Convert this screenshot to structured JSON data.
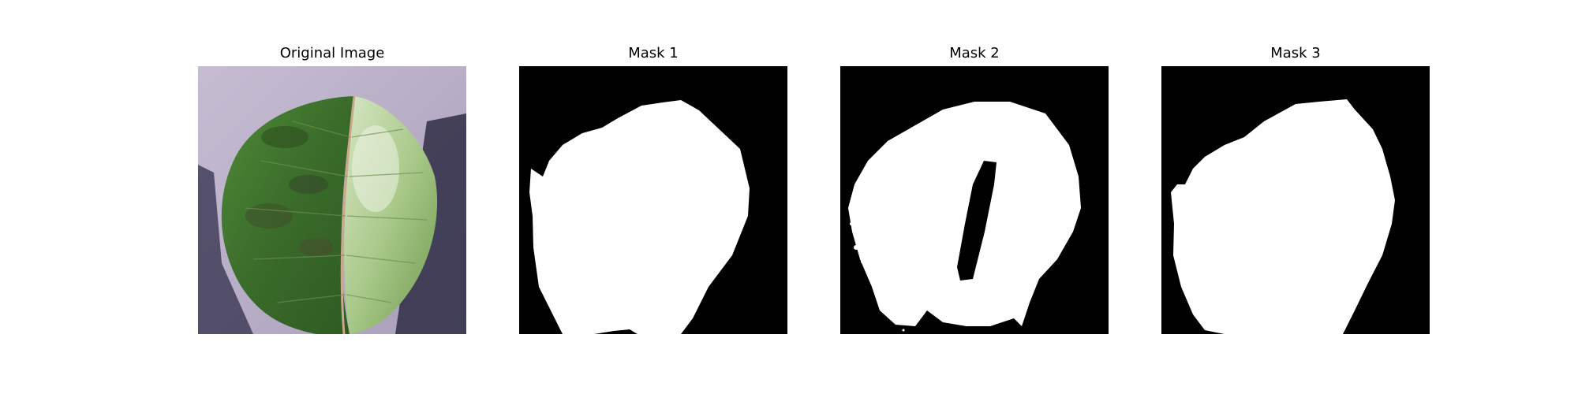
{
  "figure": {
    "panels": [
      {
        "title": "Original Image"
      },
      {
        "title": "Mask 1"
      },
      {
        "title": "Mask 2"
      },
      {
        "title": "Mask 3"
      }
    ]
  },
  "colors": {
    "background": "#ffffff",
    "mask_background": "#000000",
    "mask_foreground": "#ffffff",
    "leaf_dark": "#3a6b2a",
    "leaf_light": "#a9c98a",
    "backdrop": "#b9aec6",
    "shadow": "#2f2d45"
  }
}
